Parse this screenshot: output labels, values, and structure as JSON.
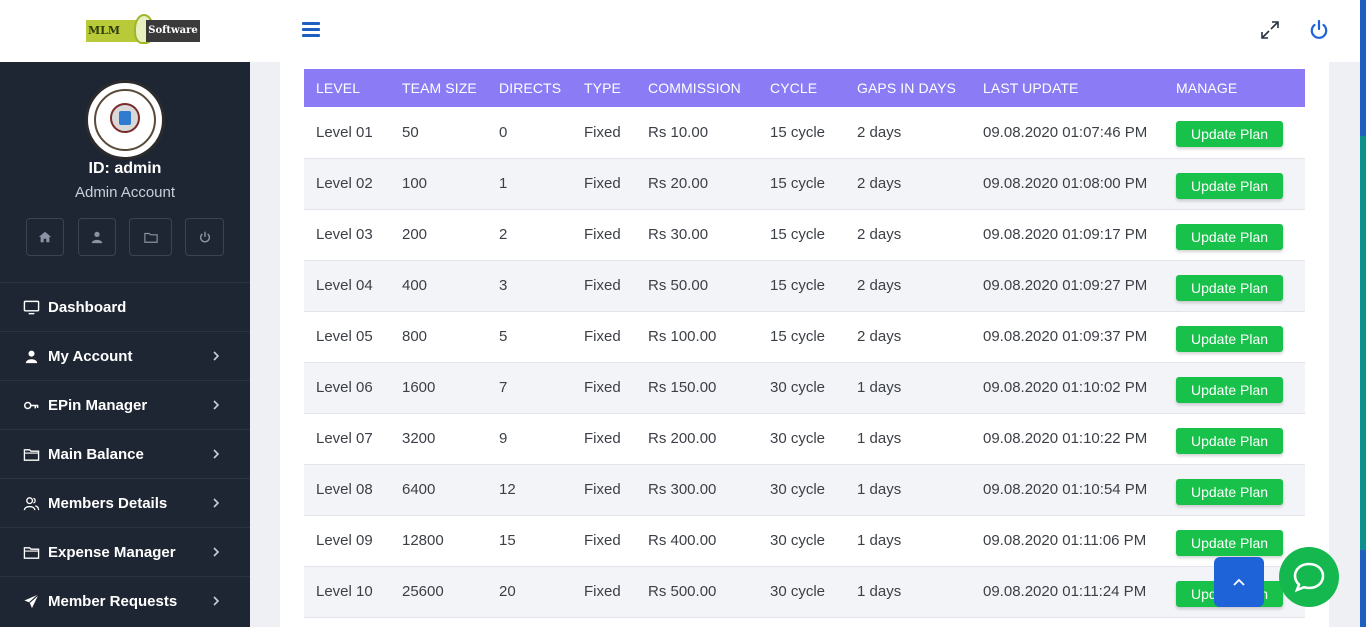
{
  "brand": {
    "logo_left": "MLM",
    "logo_right": "Software"
  },
  "profile": {
    "id_text": "ID: admin",
    "role_text": "Admin Account"
  },
  "nav": {
    "items": [
      {
        "label": "Dashboard",
        "icon": "monitor-icon",
        "has_submenu": false
      },
      {
        "label": "My Account",
        "icon": "user-icon",
        "has_submenu": true
      },
      {
        "label": "EPin Manager",
        "icon": "key-icon",
        "has_submenu": true
      },
      {
        "label": "Main Balance",
        "icon": "folder-icon",
        "has_submenu": true
      },
      {
        "label": "Members Details",
        "icon": "users-icon",
        "has_submenu": true
      },
      {
        "label": "Expense Manager",
        "icon": "folder-icon",
        "has_submenu": true
      },
      {
        "label": "Member Requests",
        "icon": "paper-plane-icon",
        "has_submenu": true
      }
    ]
  },
  "table": {
    "headers": [
      "LEVEL",
      "TEAM SIZE",
      "DIRECTS",
      "TYPE",
      "COMMISSION",
      "CYCLE",
      "GAPS IN DAYS",
      "LAST UPDATE",
      "MANAGE"
    ],
    "rows": [
      [
        "Level 01",
        "50",
        "0",
        "Fixed",
        "Rs 10.00",
        "15 cycle",
        "2 days",
        "09.08.2020 01:07:46 PM"
      ],
      [
        "Level 02",
        "100",
        "1",
        "Fixed",
        "Rs 20.00",
        "15 cycle",
        "2 days",
        "09.08.2020 01:08:00 PM"
      ],
      [
        "Level 03",
        "200",
        "2",
        "Fixed",
        "Rs 30.00",
        "15 cycle",
        "2 days",
        "09.08.2020 01:09:17 PM"
      ],
      [
        "Level 04",
        "400",
        "3",
        "Fixed",
        "Rs 50.00",
        "15 cycle",
        "2 days",
        "09.08.2020 01:09:27 PM"
      ],
      [
        "Level 05",
        "800",
        "5",
        "Fixed",
        "Rs 100.00",
        "15 cycle",
        "2 days",
        "09.08.2020 01:09:37 PM"
      ],
      [
        "Level 06",
        "1600",
        "7",
        "Fixed",
        "Rs 150.00",
        "30 cycle",
        "1 days",
        "09.08.2020 01:10:02 PM"
      ],
      [
        "Level 07",
        "3200",
        "9",
        "Fixed",
        "Rs 200.00",
        "30 cycle",
        "1 days",
        "09.08.2020 01:10:22 PM"
      ],
      [
        "Level 08",
        "6400",
        "12",
        "Fixed",
        "Rs 300.00",
        "30 cycle",
        "1 days",
        "09.08.2020 01:10:54 PM"
      ],
      [
        "Level 09",
        "12800",
        "15",
        "Fixed",
        "Rs 400.00",
        "30 cycle",
        "1 days",
        "09.08.2020 01:11:06 PM"
      ],
      [
        "Level 10",
        "25600",
        "20",
        "Fixed",
        "Rs 500.00",
        "30 cycle",
        "1 days",
        "09.08.2020 01:11:24 PM"
      ]
    ],
    "action_label": "Update Plan"
  },
  "colors": {
    "sidebar_bg": "#1f2633",
    "table_header_bg": "#8b7cf6",
    "action_green": "#18c14a",
    "accent_blue": "#1e63d8",
    "chat_green": "#14b84f"
  }
}
